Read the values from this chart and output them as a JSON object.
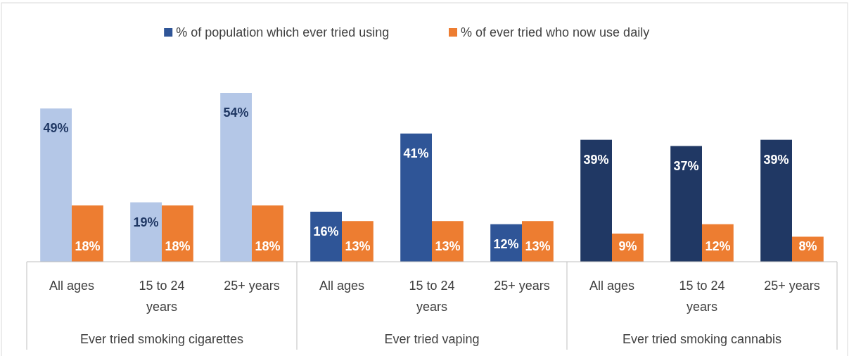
{
  "chart_data": {
    "type": "bar",
    "categories": [
      "All ages",
      "15 to 24 years",
      "25+ years",
      "All ages",
      "15 to 24 years",
      "25+ years",
      "All ages",
      "15 to 24 years",
      "25+ years"
    ],
    "series": [
      {
        "name": "% of population which ever tried using",
        "color": "#2f5597",
        "colors": [
          "#b4c7e7",
          "#b4c7e7",
          "#b4c7e7",
          "#2f5597",
          "#2f5597",
          "#2f5597",
          "#203864",
          "#203864",
          "#203864"
        ],
        "values": [
          49,
          19,
          54,
          16,
          41,
          12,
          39,
          37,
          39
        ],
        "value_labels": [
          "49%",
          "19%",
          "54%",
          "16%",
          "41%",
          "12%",
          "39%",
          "37%",
          "39%"
        ]
      },
      {
        "name": "% of ever tried who now use daily",
        "color": "#ed7d31",
        "values": [
          18,
          18,
          18,
          13,
          13,
          13,
          9,
          12,
          8
        ],
        "value_labels": [
          "18%",
          "18%",
          "18%",
          "13%",
          "13%",
          "13%",
          "9%",
          "12%",
          "8%"
        ]
      }
    ],
    "annotations": [
      "Ever tried smoking cigarettes",
      "Ever tried vaping",
      "Ever tried smoking cannabis"
    ],
    "legend": "top",
    "grid": false
  }
}
